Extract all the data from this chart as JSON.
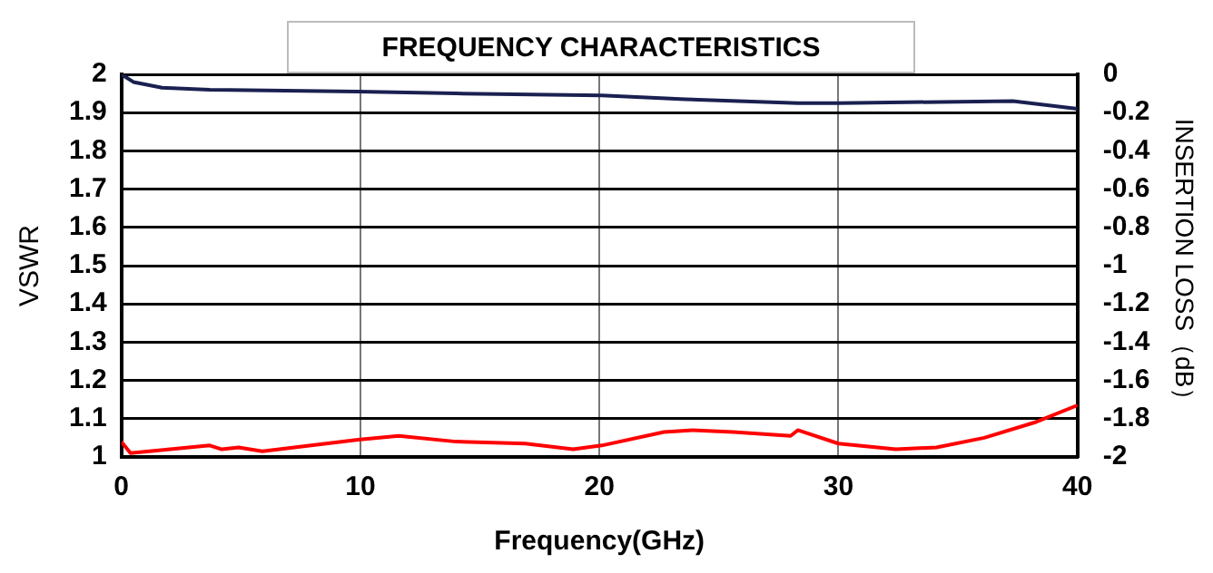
{
  "chart_data": {
    "type": "line",
    "title": "FREQUENCY CHARACTERISTICS",
    "xlabel": "Frequency(GHz)",
    "ylabel": "VSWR",
    "y2label": "INSERTION LOSS（dB）",
    "xlim": [
      0,
      40
    ],
    "xticks": [
      0,
      10,
      20,
      30,
      40
    ],
    "ylim": [
      1,
      2
    ],
    "yticks": [
      1,
      1.1,
      1.2,
      1.3,
      1.4,
      1.5,
      1.6,
      1.7,
      1.8,
      1.9,
      2
    ],
    "y2lim": [
      -2,
      0
    ],
    "y2ticks": [
      -2,
      -1.8,
      -1.6,
      -1.4,
      -1.2,
      -1,
      -0.8,
      -0.6,
      -0.4,
      -0.2,
      0
    ],
    "grid": true,
    "legend": false,
    "marker": "none",
    "line_style": "solid",
    "series": [
      {
        "color": "#ff0000",
        "x": [
          0,
          0.38,
          3.7,
          4.2,
          4.9,
          5.9,
          9.9,
          11.6,
          14,
          16.9,
          18.9,
          20.1,
          22.7,
          23.9,
          25.6,
          28,
          28.3,
          30,
          32.4,
          34.1,
          36.1,
          38.2,
          40
        ],
        "values": [
          1.04,
          1.01,
          1.03,
          1.02,
          1.025,
          1.015,
          1.045,
          1.055,
          1.04,
          1.035,
          1.02,
          1.03,
          1.065,
          1.07,
          1.065,
          1.055,
          1.07,
          1.035,
          1.02,
          1.025,
          1.05,
          1.09,
          1.135
        ]
      },
      {
        "color": "#1a2050",
        "axis": "y2",
        "x": [
          0,
          0.5,
          1.7,
          3.7,
          9.9,
          14,
          20.1,
          23.6,
          28.3,
          30,
          37.3,
          40
        ],
        "values": [
          0,
          -0.04,
          -0.07,
          -0.08,
          -0.09,
          -0.1,
          -0.11,
          -0.13,
          -0.15,
          -0.15,
          -0.14,
          -0.18
        ]
      }
    ]
  }
}
